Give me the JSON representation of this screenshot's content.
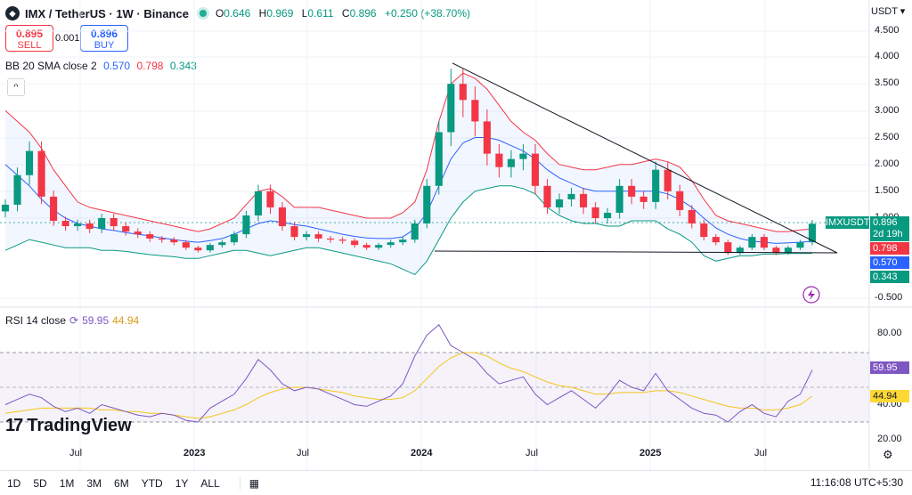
{
  "header": {
    "symbol_title": "IMX / TetherUS · 1W · Binance",
    "o_label": "O",
    "o": "0.646",
    "h_label": "H",
    "h": "0.969",
    "l_label": "L",
    "l": "0.611",
    "c_label": "C",
    "c": "0.896",
    "change": "+0.250 (+38.70%)"
  },
  "trade": {
    "sell_price": "0.895",
    "sell_label": "SELL",
    "spread": "0.001",
    "buy_price": "0.896",
    "buy_label": "BUY"
  },
  "bb_legend": {
    "label": "BB 20 SMA close 2",
    "basis": "0.570",
    "upper": "0.798",
    "lower": "0.343"
  },
  "rsi_legend": {
    "label": "RSI 14 close",
    "rsi": "59.95",
    "ma": "44.94"
  },
  "brand": "TradingView",
  "currency": "USDT",
  "price_axis": [
    "4.500",
    "4.000",
    "3.500",
    "3.000",
    "2.500",
    "2.000",
    "1.500",
    "1.000",
    "-0.500"
  ],
  "rsi_axis": [
    "80.00",
    "60.00",
    "40.00",
    "20.00"
  ],
  "time_axis": [
    {
      "label": "Jul",
      "bold": false
    },
    {
      "label": "2023",
      "bold": true
    },
    {
      "label": "Jul",
      "bold": false
    },
    {
      "label": "2024",
      "bold": true
    },
    {
      "label": "Jul",
      "bold": false
    },
    {
      "label": "2025",
      "bold": true
    },
    {
      "label": "Jul",
      "bold": false
    }
  ],
  "price_tags": {
    "symbol": "IMXUSDT",
    "last": "0.896",
    "countdown": "2d 19h",
    "upper": "0.798",
    "basis": "0.570",
    "lower": "0.343",
    "rsi": "59.95",
    "rsi_ma": "44.94"
  },
  "timeframes": [
    "1D",
    "5D",
    "1M",
    "3M",
    "6M",
    "YTD",
    "1Y",
    "ALL"
  ],
  "clock": "11:16:08 UTC+5:30",
  "colors": {
    "up": "#089981",
    "down": "#f23645",
    "bb_basis": "#2962ff",
    "bb_upper": "#f23645",
    "bb_lower": "#089981",
    "rsi": "#7e57c2",
    "rsi_ma": "#fdd835"
  },
  "chart_data": [
    {
      "type": "candlestick",
      "title": "IMX / TetherUS · 1W · Binance",
      "ylabel": "USDT",
      "ylim": [
        -0.6,
        4.6
      ],
      "series": [
        {
          "name": "IMXUSDT close",
          "values": [
            1.25,
            1.8,
            2.25,
            1.4,
            0.95,
            0.85,
            0.9,
            0.8,
            1.0,
            0.85,
            0.75,
            0.7,
            0.62,
            0.6,
            0.55,
            0.45,
            0.4,
            0.5,
            0.55,
            0.7,
            1.05,
            1.5,
            1.2,
            0.85,
            0.65,
            0.7,
            0.62,
            0.6,
            0.58,
            0.5,
            0.45,
            0.5,
            0.55,
            0.6,
            0.9,
            1.6,
            2.6,
            3.5,
            3.2,
            2.8,
            2.2,
            1.95,
            2.1,
            2.2,
            1.6,
            1.2,
            1.35,
            1.45,
            1.2,
            1.0,
            1.1,
            1.6,
            1.4,
            1.3,
            1.9,
            1.5,
            1.15,
            0.9,
            0.65,
            0.55,
            0.35,
            0.45,
            0.65,
            0.45,
            0.35,
            0.45,
            0.55,
            0.896
          ]
        },
        {
          "name": "BB Upper",
          "values": [
            3.0,
            2.8,
            2.6,
            2.3,
            1.9,
            1.6,
            1.3,
            1.2,
            1.15,
            1.1,
            1.05,
            1.0,
            0.95,
            0.9,
            0.85,
            0.8,
            0.75,
            0.8,
            0.9,
            1.0,
            1.25,
            1.5,
            1.55,
            1.4,
            1.2,
            1.2,
            1.2,
            1.15,
            1.1,
            1.05,
            1.0,
            1.0,
            1.0,
            1.1,
            1.3,
            1.9,
            2.8,
            3.5,
            3.7,
            3.6,
            3.4,
            3.1,
            2.8,
            2.6,
            2.45,
            2.2,
            2.0,
            1.95,
            1.9,
            1.9,
            1.95,
            2.0,
            2.0,
            2.05,
            2.1,
            2.05,
            1.95,
            1.7,
            1.35,
            1.05,
            0.95,
            0.9,
            0.85,
            0.8,
            0.75,
            0.75,
            0.78,
            0.798
          ]
        },
        {
          "name": "BB Basis",
          "values": [
            2.0,
            1.8,
            1.6,
            1.35,
            1.15,
            1.0,
            0.9,
            0.85,
            0.8,
            0.77,
            0.73,
            0.7,
            0.67,
            0.63,
            0.6,
            0.57,
            0.55,
            0.58,
            0.62,
            0.7,
            0.8,
            0.9,
            0.95,
            0.92,
            0.88,
            0.85,
            0.8,
            0.75,
            0.7,
            0.66,
            0.63,
            0.62,
            0.62,
            0.65,
            0.8,
            1.1,
            1.6,
            2.1,
            2.4,
            2.5,
            2.5,
            2.45,
            2.35,
            2.25,
            2.1,
            1.9,
            1.75,
            1.65,
            1.55,
            1.5,
            1.5,
            1.5,
            1.5,
            1.5,
            1.5,
            1.45,
            1.35,
            1.2,
            1.0,
            0.82,
            0.7,
            0.62,
            0.57,
            0.55,
            0.53,
            0.54,
            0.55,
            0.57
          ]
        },
        {
          "name": "BB Lower",
          "values": [
            0.4,
            0.5,
            0.6,
            0.55,
            0.5,
            0.45,
            0.45,
            0.45,
            0.4,
            0.4,
            0.38,
            0.35,
            0.32,
            0.3,
            0.28,
            0.25,
            0.25,
            0.3,
            0.35,
            0.4,
            0.4,
            0.35,
            0.3,
            0.35,
            0.4,
            0.45,
            0.45,
            0.4,
            0.35,
            0.3,
            0.25,
            0.2,
            0.15,
            0.05,
            -0.05,
            0.2,
            0.6,
            1.0,
            1.3,
            1.5,
            1.55,
            1.6,
            1.6,
            1.55,
            1.45,
            1.2,
            1.05,
            0.95,
            0.9,
            0.9,
            0.85,
            0.85,
            0.95,
            0.95,
            0.95,
            0.8,
            0.7,
            0.55,
            0.3,
            0.2,
            0.25,
            0.3,
            0.3,
            0.33,
            0.33,
            0.34,
            0.34,
            0.343
          ]
        }
      ]
    },
    {
      "type": "line",
      "title": "RSI 14 close",
      "ylim": [
        20,
        90
      ],
      "series": [
        {
          "name": "RSI",
          "values": [
            40,
            43,
            46,
            44,
            39,
            36,
            38,
            35,
            40,
            38,
            36,
            34,
            33,
            35,
            34,
            31,
            30,
            38,
            42,
            46,
            55,
            66,
            60,
            52,
            48,
            50,
            49,
            46,
            43,
            40,
            39,
            42,
            45,
            52,
            68,
            80,
            86,
            74,
            70,
            66,
            58,
            52,
            54,
            56,
            46,
            40,
            44,
            48,
            43,
            38,
            45,
            54,
            50,
            48,
            58,
            48,
            43,
            38,
            35,
            34,
            30,
            36,
            40,
            35,
            33,
            42,
            46,
            59.95
          ]
        },
        {
          "name": "RSI MA",
          "values": [
            35,
            36,
            37,
            38,
            38,
            38,
            38,
            38,
            37,
            37,
            36,
            36,
            35,
            35,
            34,
            33,
            32,
            33,
            35,
            37,
            40,
            44,
            47,
            49,
            50,
            50,
            49,
            48,
            47,
            45,
            44,
            43,
            43,
            44,
            48,
            55,
            62,
            67,
            70,
            70,
            68,
            64,
            61,
            59,
            56,
            53,
            51,
            50,
            48,
            46,
            46,
            47,
            47,
            47,
            48,
            48,
            47,
            45,
            43,
            41,
            39,
            38,
            38,
            37,
            37,
            38,
            40,
            44.94
          ]
        }
      ]
    }
  ]
}
